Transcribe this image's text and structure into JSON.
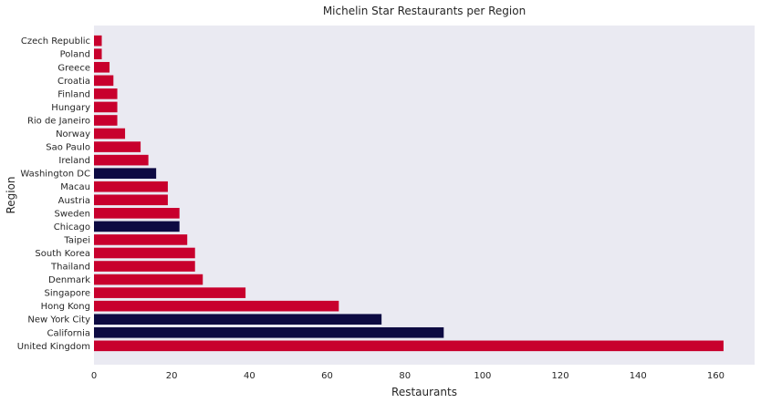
{
  "chart_data": {
    "type": "bar",
    "orientation": "horizontal",
    "title": "Michelin Star Restaurants per Region",
    "xlabel": "Restaurants",
    "ylabel": "Region",
    "xlim": [
      0,
      170
    ],
    "xticks": [
      0,
      20,
      40,
      60,
      80,
      100,
      120,
      140,
      160
    ],
    "grid": false,
    "background": "#eaeaf2",
    "colors": {
      "default": "#c8002d",
      "highlight": "#0d0a42"
    },
    "categories": [
      "United Kingdom",
      "California",
      "New York City",
      "Hong Kong",
      "Singapore",
      "Denmark",
      "Thailand",
      "South Korea",
      "Taipei",
      "Chicago",
      "Sweden",
      "Austria",
      "Macau",
      "Washington DC",
      "Ireland",
      "Sao Paulo",
      "Norway",
      "Rio de Janeiro",
      "Hungary",
      "Finland",
      "Croatia",
      "Greece",
      "Poland",
      "Czech Republic"
    ],
    "values": [
      162,
      90,
      74,
      63,
      39,
      28,
      26,
      26,
      24,
      22,
      22,
      19,
      19,
      16,
      14,
      12,
      8,
      6,
      6,
      6,
      5,
      4,
      2,
      2
    ],
    "highlighted": [
      "California",
      "New York City",
      "Chicago",
      "Washington DC"
    ]
  }
}
